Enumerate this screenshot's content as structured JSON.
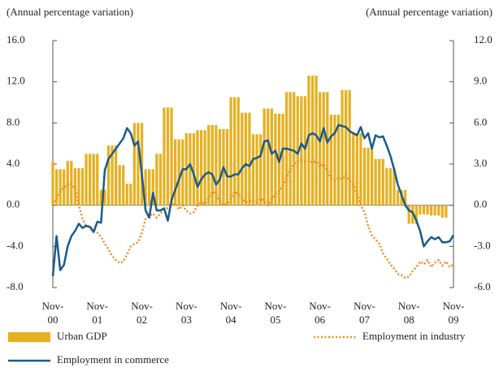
{
  "chart_data": {
    "type": "bar",
    "y_axis_label": "(Annual percentage variation)",
    "y2_axis_label": "(Annual percentage variation)",
    "categories": [
      "Nov-00",
      null,
      null,
      null,
      null,
      null,
      null,
      null,
      null,
      null,
      null,
      null,
      "Nov-01",
      null,
      null,
      null,
      null,
      null,
      null,
      null,
      null,
      null,
      null,
      null,
      "Nov-02",
      null,
      null,
      null,
      null,
      null,
      null,
      null,
      null,
      null,
      null,
      null,
      "Nov-03",
      null,
      null,
      null,
      null,
      null,
      null,
      null,
      null,
      null,
      null,
      null,
      "Nov-04",
      null,
      null,
      null,
      null,
      null,
      null,
      null,
      null,
      null,
      null,
      null,
      "Nov-05",
      null,
      null,
      null,
      null,
      null,
      null,
      null,
      null,
      null,
      null,
      null,
      "Nov-06",
      null,
      null,
      null,
      null,
      null,
      null,
      null,
      null,
      null,
      null,
      null,
      "Nov-07",
      null,
      null,
      null,
      null,
      null,
      null,
      null,
      null,
      null,
      null,
      null,
      "Nov-08",
      null,
      null,
      null,
      null,
      null,
      null,
      null,
      null,
      null,
      null,
      null,
      "Nov-09"
    ],
    "ylim": [
      -8,
      16
    ],
    "yticks": [
      {
        "value": 16,
        "label": "16.0"
      },
      {
        "value": 12,
        "label": "12.0"
      },
      {
        "value": 8,
        "label": "8.0"
      },
      {
        "value": 4,
        "label": "4.0"
      },
      {
        "value": 0,
        "label": "0.0"
      },
      {
        "value": -4,
        "label": "-4.0"
      },
      {
        "value": -8,
        "label": "-8.0"
      }
    ],
    "y2lim": [
      -6,
      12
    ],
    "y2ticks": [
      {
        "value": 12,
        "label": "12.0"
      },
      {
        "value": 9,
        "label": "9.0"
      },
      {
        "value": 6,
        "label": "6.0"
      },
      {
        "value": 3,
        "label": "3.0"
      },
      {
        "value": 0,
        "label": "0.0"
      },
      {
        "value": -3,
        "label": "-3.0"
      },
      {
        "value": -6,
        "label": "-6.0"
      }
    ],
    "series": [
      {
        "name": "Urban GDP",
        "type": "bar",
        "color": "#e6b020",
        "values": [
          4.2,
          3.5,
          3.5,
          3.5,
          4.3,
          4.3,
          3.6,
          3.6,
          3.6,
          5.0,
          5.0,
          5.0,
          5.0,
          1.5,
          1.5,
          5.8,
          5.8,
          5.8,
          3.9,
          3.9,
          2.1,
          2.1,
          8.0,
          8.0,
          8.0,
          3.5,
          3.5,
          3.5,
          5.0,
          5.0,
          9.5,
          9.5,
          9.5,
          6.4,
          6.4,
          6.4,
          7.0,
          7.0,
          7.0,
          7.3,
          7.3,
          7.3,
          7.8,
          7.8,
          7.8,
          7.4,
          7.4,
          7.4,
          10.5,
          10.5,
          10.5,
          9.0,
          9.0,
          9.0,
          6.9,
          6.9,
          6.9,
          9.4,
          9.4,
          9.4,
          8.9,
          8.9,
          8.9,
          11.0,
          11.0,
          11.0,
          10.6,
          10.6,
          10.6,
          12.6,
          12.6,
          12.6,
          11.0,
          11.0,
          11.0,
          8.8,
          8.8,
          8.8,
          11.2,
          11.2,
          11.2,
          7.0,
          7.0,
          7.0,
          5.6,
          5.6,
          5.6,
          4.5,
          4.5,
          4.5,
          3.6,
          3.6,
          3.6,
          1.5,
          1.5,
          1.5,
          -1.8,
          -1.8,
          -1.8,
          -0.9,
          -0.9,
          -0.9,
          -1.0,
          -1.0,
          -1.0,
          -1.2,
          -1.2,
          null,
          null
        ]
      },
      {
        "name": "Employment in industry",
        "type": "line",
        "axis": "y2",
        "dashed": true,
        "color": "#f28a24",
        "values": [
          0.0,
          0.5,
          1.0,
          1.3,
          1.5,
          1.6,
          1.2,
          0.0,
          -1.0,
          -1.5,
          -1.6,
          -1.8,
          -2.0,
          -2.3,
          -2.8,
          -3.2,
          -3.7,
          -4.0,
          -4.2,
          -4.1,
          -3.6,
          -3.0,
          -2.8,
          -2.7,
          -2.0,
          -1.0,
          -0.8,
          -0.6,
          -0.9,
          -0.6,
          -0.3,
          -0.2,
          0.0,
          0.1,
          -0.3,
          0.0,
          -0.4,
          -0.6,
          -0.5,
          0.0,
          0.2,
          0.1,
          0.5,
          1.0,
          0.8,
          0.3,
          0.0,
          0.1,
          0.5,
          1.0,
          0.8,
          0.5,
          0.2,
          0.3,
          0.3,
          0.2,
          0.5,
          0.3,
          0.0,
          0.4,
          0.8,
          1.0,
          1.5,
          2.0,
          2.6,
          3.0,
          3.2,
          3.3,
          3.2,
          3.3,
          3.1,
          3.2,
          2.8,
          3.0,
          2.5,
          2.0,
          1.8,
          2.0,
          1.9,
          2.2,
          1.8,
          1.5,
          0.8,
          0.0,
          -0.5,
          -1.5,
          -2.2,
          -2.5,
          -2.8,
          -3.5,
          -3.9,
          -4.3,
          -4.6,
          -5.0,
          -5.1,
          -5.3,
          -5.2,
          -4.8,
          -4.5,
          -4.1,
          -4.3,
          -4.0,
          -4.5,
          -4.2,
          -4.0,
          -4.4,
          -4.1,
          -4.5,
          -4.3
        ]
      },
      {
        "name": "Employment in commerce",
        "type": "line",
        "color": "#1a5b8a",
        "values": [
          -6.9,
          -3.0,
          -6.3,
          -5.8,
          -4.0,
          -3.0,
          -2.5,
          -1.8,
          -2.2,
          -2.0,
          -2.1,
          -2.6,
          -1.6,
          -1.7,
          3.4,
          4.5,
          5.0,
          5.5,
          6.0,
          6.5,
          7.5,
          7.0,
          5.8,
          6.2,
          3.0,
          -0.5,
          -1.2,
          1.2,
          -0.5,
          -0.5,
          -0.3,
          -1.5,
          0.5,
          1.5,
          2.5,
          3.5,
          3.5,
          4.0,
          3.0,
          1.8,
          2.5,
          3.0,
          3.2,
          3.0,
          2.0,
          2.5,
          3.7,
          2.8,
          2.8,
          3.0,
          3.0,
          3.6,
          4.0,
          3.8,
          4.5,
          4.6,
          4.8,
          6.2,
          6.3,
          5.0,
          5.3,
          4.2,
          5.5,
          5.5,
          5.4,
          5.3,
          5.0,
          6.0,
          5.5,
          6.8,
          7.0,
          6.8,
          6.2,
          7.5,
          6.1,
          6.7,
          7.0,
          7.8,
          7.7,
          7.6,
          7.2,
          7.0,
          6.8,
          7.6,
          6.5,
          7.0,
          5.5,
          6.8,
          6.6,
          6.7,
          5.8,
          4.8,
          3.5,
          2.0,
          1.0,
          0.0,
          -0.5,
          -0.7,
          -1.5,
          -2.5,
          -4.0,
          -3.5,
          -3.1,
          -3.3,
          -3.1,
          -3.6,
          -3.6,
          -3.5,
          -2.9
        ]
      }
    ]
  }
}
